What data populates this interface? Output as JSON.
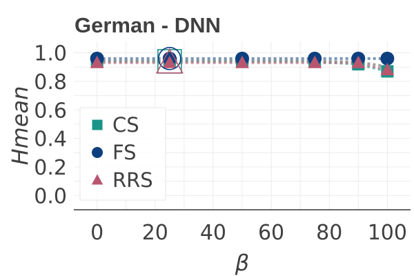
{
  "chart_data": {
    "type": "line",
    "title": "German - DNN",
    "xlabel": "β",
    "ylabel": "Hmean",
    "xlim": [
      -8,
      108
    ],
    "ylim": [
      -0.1,
      1.08
    ],
    "xticks": [
      0,
      20,
      40,
      60,
      80,
      100
    ],
    "yticks": [
      0.0,
      0.2,
      0.4,
      0.6,
      0.8,
      1.0
    ],
    "xtick_labels": [
      "0",
      "20",
      "40",
      "60",
      "80",
      "100"
    ],
    "ytick_labels": [
      "0.0",
      "0.2",
      "0.4",
      "0.6",
      "0.8",
      "1.0"
    ],
    "grid": true,
    "legend_position": "center-left",
    "x": [
      0,
      25,
      50,
      75,
      90,
      100
    ],
    "series": [
      {
        "name": "CS",
        "marker": "square",
        "color": "#1a9488",
        "values": [
          0.94,
          0.94,
          0.94,
          0.94,
          0.92,
          0.87
        ]
      },
      {
        "name": "FS",
        "marker": "circle",
        "color": "#0d3f7f",
        "values": [
          0.96,
          0.96,
          0.96,
          0.96,
          0.96,
          0.96
        ]
      },
      {
        "name": "RRS",
        "marker": "triangle",
        "color": "#b85670",
        "values": [
          0.93,
          0.93,
          0.93,
          0.93,
          0.93,
          0.88
        ]
      }
    ],
    "highlight": {
      "x": 25,
      "series": [
        "CS",
        "FS",
        "RRS"
      ]
    }
  }
}
